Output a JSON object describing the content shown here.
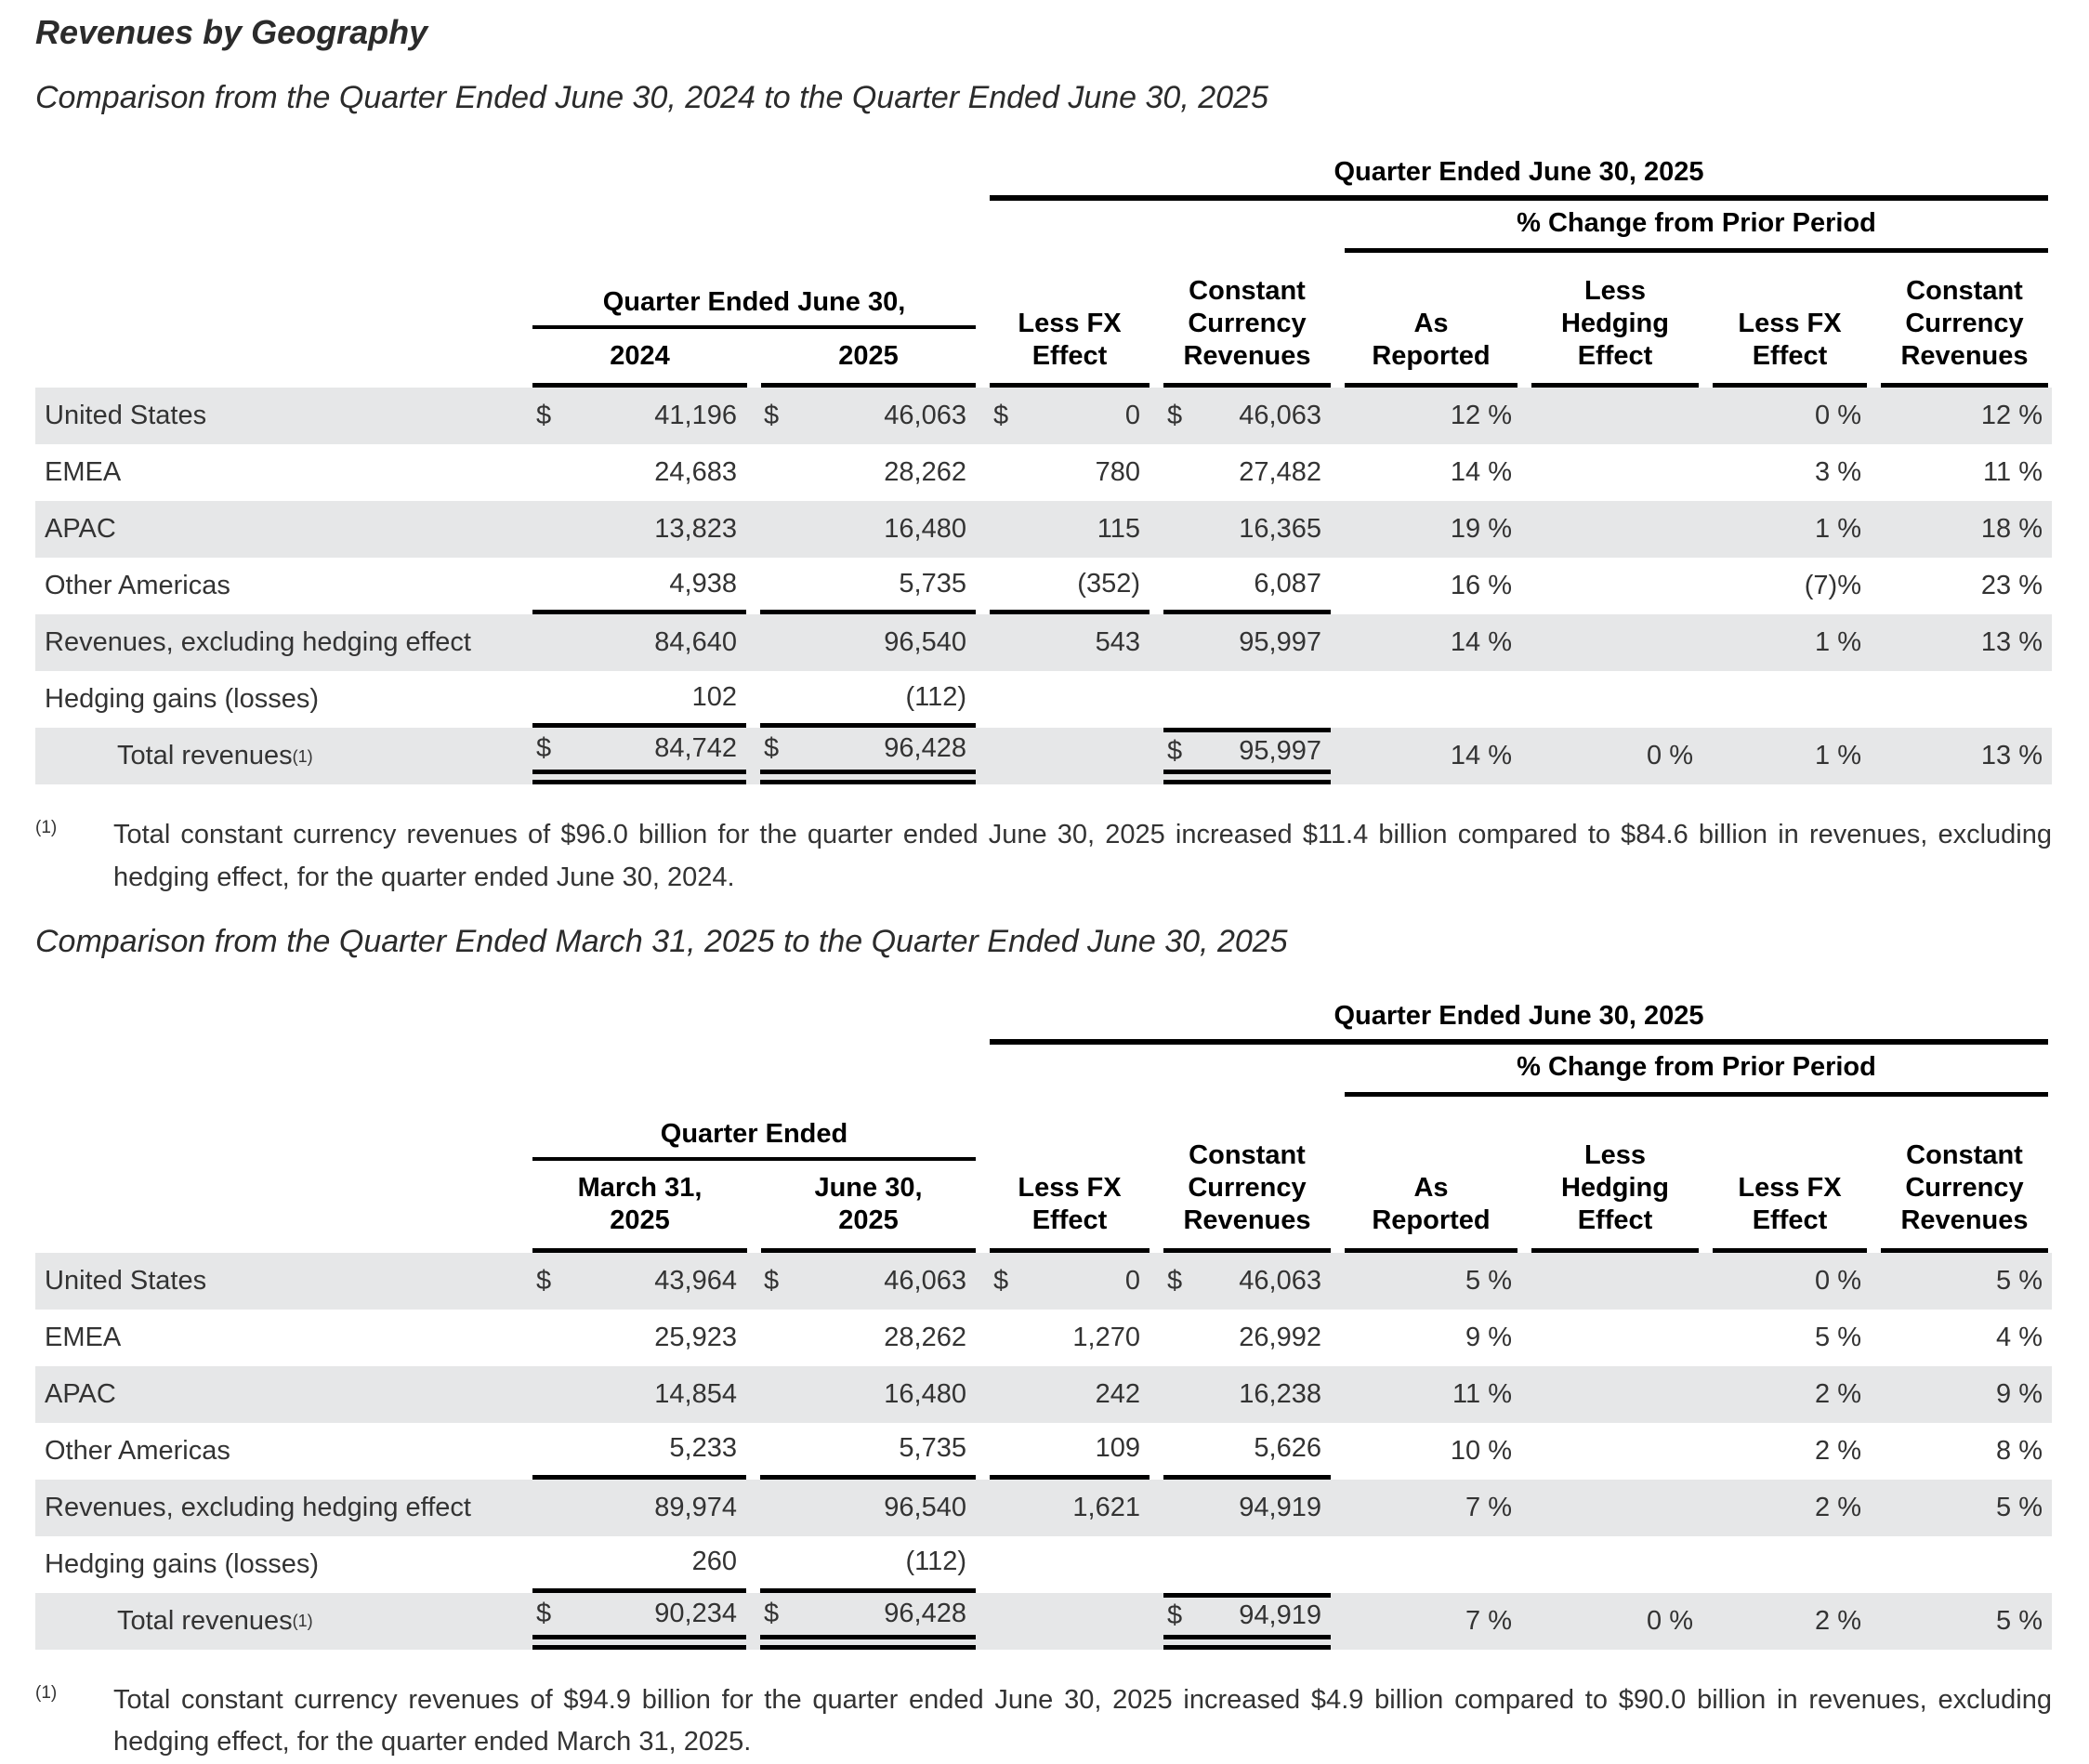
{
  "title": "Revenues by Geography",
  "colors": {
    "row_shade": "#e6e7e8",
    "rule": "#000000",
    "text": "#333333"
  },
  "sections": [
    {
      "heading": "Comparison from the Quarter Ended June 30, 2024 to the Quarter Ended June 30, 2025",
      "table": {
        "span_header": "Quarter Ended June 30, 2025",
        "pct_header": "% Change from Prior Period",
        "period_group": {
          "title": "Quarter Ended June 30,",
          "cols": [
            "2024",
            "2025"
          ]
        },
        "col_headers": [
          "Less FX\nEffect",
          "Constant\nCurrency\nRevenues",
          "As\nReported",
          "Less\nHedging\nEffect",
          "Less FX\nEffect",
          "Constant\nCurrency\nRevenues"
        ],
        "rows": [
          {
            "label": "United States",
            "money": [
              [
                "$",
                "41,196"
              ],
              [
                "$",
                "46,063"
              ],
              [
                "$",
                "0"
              ],
              [
                "$",
                "46,063"
              ]
            ],
            "pct": [
              "12 %",
              "",
              "0 %",
              "12 %"
            ]
          },
          {
            "label": "EMEA",
            "money": [
              [
                "",
                "24,683"
              ],
              [
                "",
                "28,262"
              ],
              [
                "",
                "780"
              ],
              [
                "",
                "27,482"
              ]
            ],
            "pct": [
              "14 %",
              "",
              "3 %",
              "11 %"
            ]
          },
          {
            "label": "APAC",
            "money": [
              [
                "",
                "13,823"
              ],
              [
                "",
                "16,480"
              ],
              [
                "",
                "115"
              ],
              [
                "",
                "16,365"
              ]
            ],
            "pct": [
              "19 %",
              "",
              "1 %",
              "18 %"
            ]
          },
          {
            "label": "Other Americas",
            "money": [
              [
                "",
                "4,938"
              ],
              [
                "",
                "5,735"
              ],
              [
                "",
                "(352)"
              ],
              [
                "",
                "6,087"
              ]
            ],
            "pct": [
              "16 %",
              "",
              "(7)%",
              "23 %"
            ]
          },
          {
            "label": "Revenues, excluding hedging effect",
            "money": [
              [
                "",
                "84,640"
              ],
              [
                "",
                "96,540"
              ],
              [
                "",
                "543"
              ],
              [
                "",
                "95,997"
              ]
            ],
            "pct": [
              "14 %",
              "",
              "1 %",
              "13 %"
            ]
          },
          {
            "label": "Hedging gains (losses)",
            "money": [
              [
                "",
                "102"
              ],
              [
                "",
                "(112)"
              ],
              [
                "",
                ""
              ],
              [
                "",
                ""
              ]
            ],
            "pct": [
              "",
              "",
              "",
              ""
            ]
          },
          {
            "label": "Total revenues",
            "sup": "(1)",
            "indent": true,
            "money": [
              [
                "$",
                "84,742"
              ],
              [
                "$",
                "96,428"
              ],
              [
                "",
                ""
              ],
              [
                "$",
                "95,997"
              ]
            ],
            "pct": [
              "14 %",
              "0 %",
              "1 %",
              "13 %"
            ]
          }
        ]
      },
      "footnote": {
        "marker": "(1)",
        "text": "Total constant currency revenues of $96.0 billion for the quarter ended June 30, 2025 increased $11.4 billion compared to $84.6 billion in revenues, excluding hedging effect, for the quarter ended June 30, 2024."
      }
    },
    {
      "heading": "Comparison from the Quarter Ended March 31, 2025 to the Quarter Ended June 30, 2025",
      "table": {
        "span_header": "Quarter Ended June 30, 2025",
        "pct_header": "% Change from Prior Period",
        "period_group": {
          "title": "Quarter Ended",
          "cols": [
            "March 31,\n2025",
            "June 30,\n2025"
          ]
        },
        "col_headers": [
          "Less FX\nEffect",
          "Constant\nCurrency\nRevenues",
          "As\nReported",
          "Less\nHedging\nEffect",
          "Less FX\nEffect",
          "Constant\nCurrency\nRevenues"
        ],
        "rows": [
          {
            "label": "United States",
            "money": [
              [
                "$",
                "43,964"
              ],
              [
                "$",
                "46,063"
              ],
              [
                "$",
                "0"
              ],
              [
                "$",
                "46,063"
              ]
            ],
            "pct": [
              "5 %",
              "",
              "0 %",
              "5 %"
            ]
          },
          {
            "label": "EMEA",
            "money": [
              [
                "",
                "25,923"
              ],
              [
                "",
                "28,262"
              ],
              [
                "",
                "1,270"
              ],
              [
                "",
                "26,992"
              ]
            ],
            "pct": [
              "9 %",
              "",
              "5 %",
              "4 %"
            ]
          },
          {
            "label": "APAC",
            "money": [
              [
                "",
                "14,854"
              ],
              [
                "",
                "16,480"
              ],
              [
                "",
                "242"
              ],
              [
                "",
                "16,238"
              ]
            ],
            "pct": [
              "11 %",
              "",
              "2 %",
              "9 %"
            ]
          },
          {
            "label": "Other Americas",
            "money": [
              [
                "",
                "5,233"
              ],
              [
                "",
                "5,735"
              ],
              [
                "",
                "109"
              ],
              [
                "",
                "5,626"
              ]
            ],
            "pct": [
              "10 %",
              "",
              "2 %",
              "8 %"
            ]
          },
          {
            "label": "Revenues, excluding hedging effect",
            "money": [
              [
                "",
                "89,974"
              ],
              [
                "",
                "96,540"
              ],
              [
                "",
                "1,621"
              ],
              [
                "",
                "94,919"
              ]
            ],
            "pct": [
              "7 %",
              "",
              "2 %",
              "5 %"
            ]
          },
          {
            "label": "Hedging gains (losses)",
            "money": [
              [
                "",
                "260"
              ],
              [
                "",
                "(112)"
              ],
              [
                "",
                ""
              ],
              [
                "",
                ""
              ]
            ],
            "pct": [
              "",
              "",
              "",
              ""
            ]
          },
          {
            "label": "Total revenues",
            "sup": "(1)",
            "indent": true,
            "money": [
              [
                "$",
                "90,234"
              ],
              [
                "$",
                "96,428"
              ],
              [
                "",
                ""
              ],
              [
                "$",
                "94,919"
              ]
            ],
            "pct": [
              "7 %",
              "0 %",
              "2 %",
              "5 %"
            ]
          }
        ]
      },
      "footnote": {
        "marker": "(1)",
        "text": "Total constant currency revenues of $94.9 billion for the quarter ended June 30, 2025 increased $4.9 billion compared to $90.0 billion in revenues, excluding hedging effect, for the quarter ended March 31, 2025."
      }
    }
  ]
}
